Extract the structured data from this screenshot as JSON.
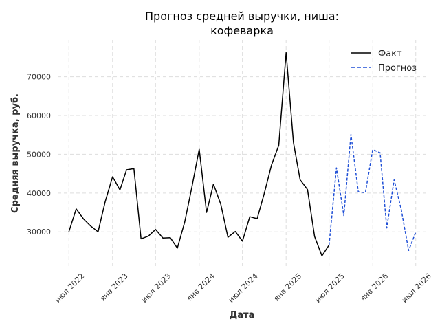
{
  "chart_data": {
    "type": "line",
    "title_line1": "Прогноз средней выручки, ниша:",
    "title_line2": "кофеварка",
    "xlabel": "Дата",
    "ylabel": "Средняя выручка, руб.",
    "ylim": [
      21000,
      79500
    ],
    "xlim": [
      "2022-05-15",
      "2026-08-20"
    ],
    "grid": true,
    "legend_position": "top-right",
    "x_ticks": [
      {
        "date": "2022-07-01",
        "label": "июл 2022"
      },
      {
        "date": "2023-01-01",
        "label": "янв 2023"
      },
      {
        "date": "2023-07-01",
        "label": "июл 2023"
      },
      {
        "date": "2024-01-01",
        "label": "янв 2024"
      },
      {
        "date": "2024-07-01",
        "label": "июл 2024"
      },
      {
        "date": "2025-01-01",
        "label": "янв 2025"
      },
      {
        "date": "2025-07-01",
        "label": "июл 2025"
      },
      {
        "date": "2026-01-01",
        "label": "янв 2026"
      },
      {
        "date": "2026-07-01",
        "label": "июл 2026"
      }
    ],
    "y_ticks": [
      {
        "value": 30000,
        "label": "30000"
      },
      {
        "value": 40000,
        "label": "40000"
      },
      {
        "value": 50000,
        "label": "50000"
      },
      {
        "value": 60000,
        "label": "60000"
      },
      {
        "value": 70000,
        "label": "70000"
      }
    ],
    "series": [
      {
        "name": "Факт",
        "color": "#000000",
        "dash": "solid",
        "x": [
          "2022-07-01",
          "2022-08-01",
          "2022-09-01",
          "2022-10-01",
          "2022-11-01",
          "2022-12-01",
          "2023-01-01",
          "2023-02-01",
          "2023-03-01",
          "2023-04-01",
          "2023-05-01",
          "2023-06-01",
          "2023-07-01",
          "2023-08-01",
          "2023-09-01",
          "2023-10-01",
          "2023-11-01",
          "2023-12-01",
          "2024-01-01",
          "2024-02-01",
          "2024-03-01",
          "2024-04-01",
          "2024-05-01",
          "2024-06-01",
          "2024-07-01",
          "2024-08-01",
          "2024-09-01",
          "2024-10-01",
          "2024-11-01",
          "2024-12-01",
          "2025-01-01",
          "2025-02-01",
          "2025-03-01",
          "2025-04-01",
          "2025-05-01",
          "2025-06-01",
          "2025-07-01"
        ],
        "values": [
          30000,
          35900,
          33300,
          31500,
          30000,
          37800,
          44200,
          40800,
          46000,
          46300,
          28200,
          28900,
          30600,
          28400,
          28500,
          25800,
          32500,
          41500,
          51300,
          35000,
          42300,
          37100,
          28600,
          30100,
          27600,
          33900,
          33400,
          39900,
          47300,
          52300,
          76200,
          53000,
          43400,
          40900,
          28800,
          23800,
          26600
        ]
      },
      {
        "name": "Прогноз",
        "color": "#1f4fd6",
        "dash": "dashed",
        "x": [
          "2025-07-01",
          "2025-08-01",
          "2025-09-01",
          "2025-10-01",
          "2025-11-01",
          "2025-12-01",
          "2026-01-01",
          "2026-02-01",
          "2026-03-01",
          "2026-04-01",
          "2026-05-01",
          "2026-06-01",
          "2026-07-01"
        ],
        "values": [
          26600,
          46500,
          34200,
          55100,
          40300,
          40100,
          51200,
          50400,
          31000,
          43400,
          35700,
          25200,
          29900
        ]
      }
    ]
  }
}
